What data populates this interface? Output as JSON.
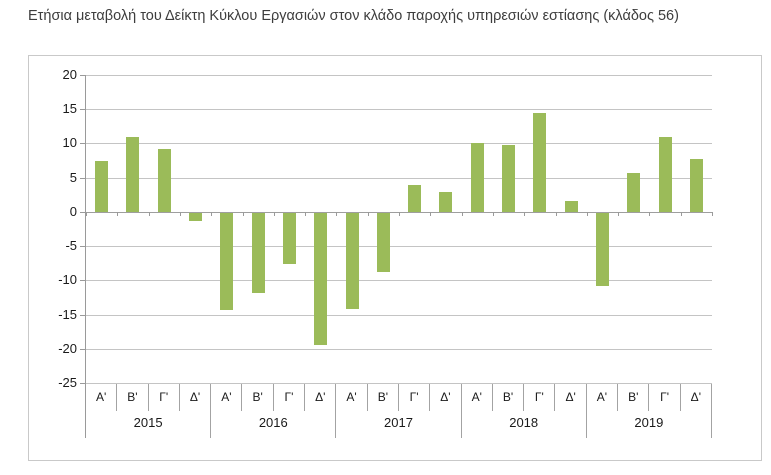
{
  "title": "Ετήσια μεταβολή του Δείκτη Κύκλου Εργασιών στον κλάδο παροχής υπηρεσιών εστίασης (κλάδος 56)",
  "chart_data": {
    "type": "bar",
    "title": "Ετήσια μεταβολή του Δείκτη Κύκλου Εργασιών στον κλάδο παροχής υπηρεσιών εστίασης (κλάδος 56)",
    "quarter_labels": [
      "Α'",
      "Β'",
      "Γ'",
      "Δ'"
    ],
    "series": [
      {
        "year": "2015",
        "values": [
          7.4,
          10.9,
          9.2,
          -1.3
        ]
      },
      {
        "year": "2016",
        "values": [
          -14.3,
          -11.9,
          -7.6,
          -19.5
        ]
      },
      {
        "year": "2017",
        "values": [
          -14.2,
          -8.8,
          4.0,
          2.9
        ]
      },
      {
        "year": "2018",
        "values": [
          10.0,
          9.7,
          14.4,
          1.6
        ]
      },
      {
        "year": "2019",
        "values": [
          -10.9,
          5.7,
          10.9,
          7.7
        ]
      }
    ],
    "y_ticks": [
      20,
      15,
      10,
      5,
      0,
      -5,
      -10,
      -15,
      -20,
      -25
    ],
    "ylim": [
      -25,
      20
    ],
    "xlabel": "",
    "ylabel": "",
    "grid": true,
    "legend": false,
    "bar_color": "#9bbb59",
    "gridline_color": "#c4c4c4",
    "zero_line_color": "#9e9e9e",
    "axis_color": "#9a9a9a",
    "text_color": "#1a1a1a"
  }
}
